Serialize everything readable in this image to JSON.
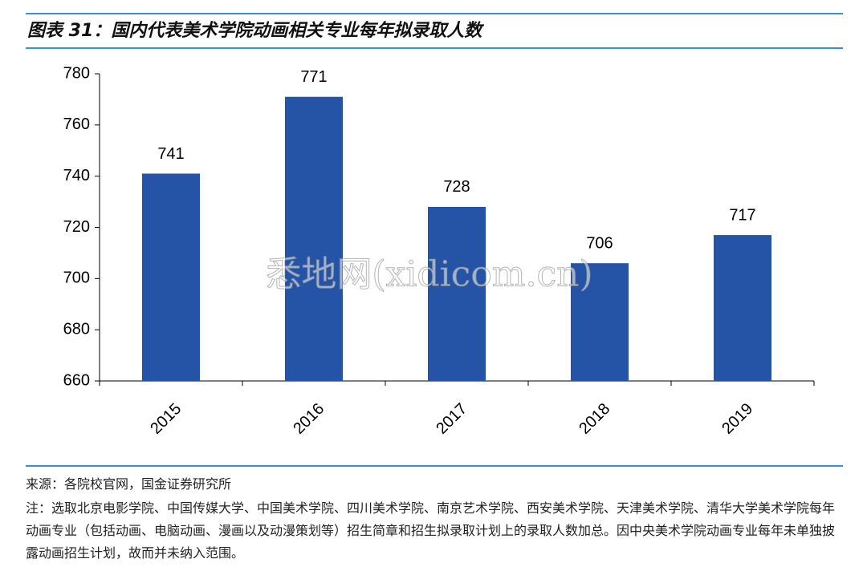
{
  "chart_data": {
    "type": "bar",
    "title": "图表 31：国内代表美术学院动画相关专业每年拟录取人数",
    "categories": [
      "2015",
      "2016",
      "2017",
      "2018",
      "2019"
    ],
    "values": [
      741,
      771,
      728,
      706,
      717
    ],
    "color": "#2554a7",
    "ylim": [
      660,
      780
    ],
    "yticks": [
      660,
      680,
      700,
      720,
      740,
      760,
      780
    ],
    "watermark": "悉地网(xidicom.cn)",
    "source": "来源：各院校官网，国金证券研究所",
    "note": "注：选取北京电影学院、中国传媒大学、中国美术学院、四川美术学院、南京艺术学院、西安美术学院、天津美术学院、清华大学美术学院每年动画专业（包括动画、电脑动画、漫画以及动漫策划等）招生简章和招生拟录取计划上的录取人数加总。因中央美术学院动画专业每年未单独披露动画招生计划，故而并未纳入范围。"
  }
}
